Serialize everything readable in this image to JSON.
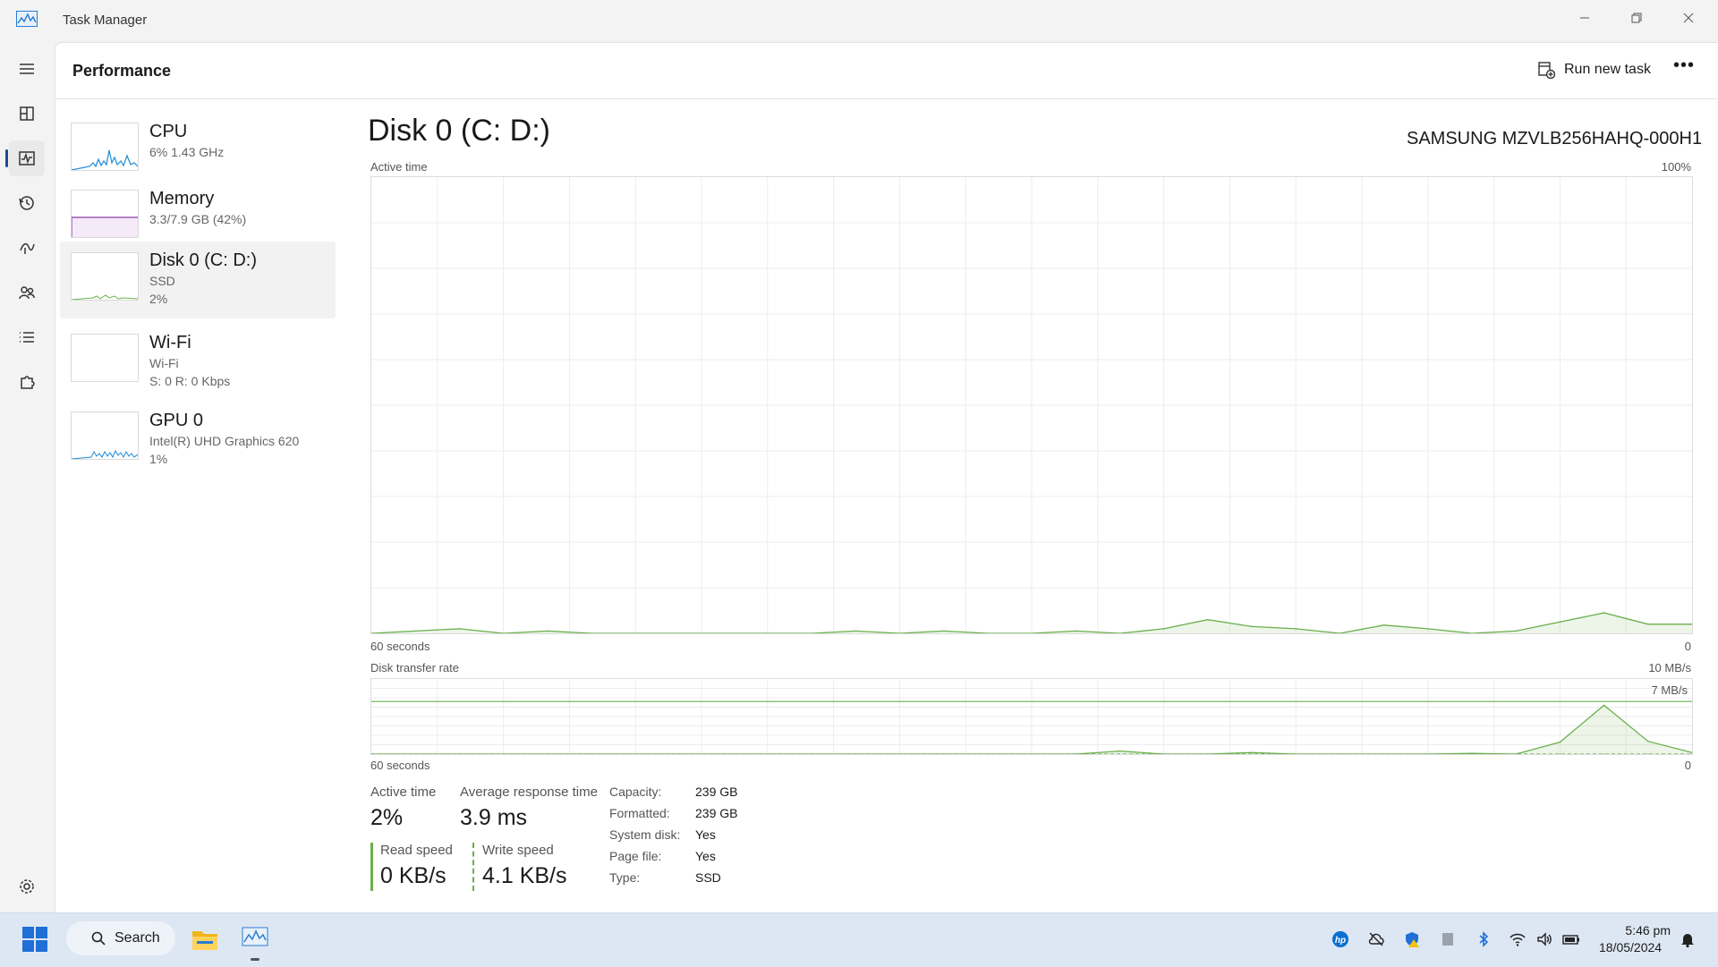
{
  "window": {
    "title": "Task Manager"
  },
  "header": {
    "title": "Performance",
    "run_task_label": "Run new task"
  },
  "devices": [
    {
      "name": "CPU",
      "sub1": "6%  1.43 GHz",
      "sub2": ""
    },
    {
      "name": "Memory",
      "sub1": "3.3/7.9 GB (42%)",
      "sub2": ""
    },
    {
      "name": "Disk 0 (C: D:)",
      "sub1": "SSD",
      "sub2": "2%"
    },
    {
      "name": "Wi-Fi",
      "sub1": "Wi-Fi",
      "sub2": "S: 0  R: 0 Kbps"
    },
    {
      "name": "GPU 0",
      "sub1": "Intel(R) UHD Graphics 620",
      "sub2": "1%"
    }
  ],
  "detail": {
    "title": "Disk 0 (C: D:)",
    "model": "SAMSUNG MZVLB256HAHQ-000H1",
    "active_chart": {
      "label": "Active time",
      "max_label": "100%",
      "left_label": "60 seconds",
      "right_label": "0"
    },
    "transfer_chart": {
      "label": "Disk transfer rate",
      "max_label": "10 MB/s",
      "ref_label": "7 MB/s",
      "left_label": "60 seconds",
      "right_label": "0"
    }
  },
  "stats": {
    "active_time_label": "Active time",
    "active_time_value": "2%",
    "avg_response_label": "Average response time",
    "avg_response_value": "3.9 ms",
    "read_label": "Read speed",
    "read_value": "0 KB/s",
    "write_label": "Write speed",
    "write_value": "4.1 KB/s"
  },
  "properties": [
    {
      "key": "Capacity:",
      "value": "239 GB"
    },
    {
      "key": "Formatted:",
      "value": "239 GB"
    },
    {
      "key": "System disk:",
      "value": "Yes"
    },
    {
      "key": "Page file:",
      "value": "Yes"
    },
    {
      "key": "Type:",
      "value": "SSD"
    }
  ],
  "taskbar": {
    "search_label": "Search",
    "time": "5:46 pm",
    "date": "18/05/2024"
  },
  "colors": {
    "disk_green": "#6ab04c",
    "cpu_blue": "#1f8bd6",
    "memory_purple": "#8b3aa8",
    "gpu_blue": "#1f8bd6"
  },
  "chart_data": [
    {
      "type": "area",
      "title": "Active time",
      "ylabel": "",
      "ylim": [
        0,
        100
      ],
      "x": [
        60,
        58,
        56,
        54,
        52,
        50,
        48,
        46,
        44,
        42,
        40,
        38,
        36,
        34,
        32,
        30,
        28,
        26,
        24,
        22,
        20,
        18,
        16,
        14,
        12,
        10,
        8,
        6,
        4,
        2,
        0
      ],
      "series": [
        {
          "values": [
            0,
            0.5,
            1,
            0,
            0.5,
            0,
            0,
            0,
            0,
            0,
            0,
            0.5,
            0,
            0.5,
            0,
            0,
            0.5,
            0,
            1,
            3,
            1.5,
            1,
            0,
            1.8,
            1,
            0,
            0.5,
            2.5,
            4.5,
            2,
            2
          ]
        }
      ]
    },
    {
      "type": "area",
      "title": "Disk transfer rate",
      "ylabel": "",
      "ylim": [
        0,
        10
      ],
      "x": [
        60,
        58,
        56,
        54,
        52,
        50,
        48,
        46,
        44,
        42,
        40,
        38,
        36,
        34,
        32,
        30,
        28,
        26,
        24,
        22,
        20,
        18,
        16,
        14,
        12,
        10,
        8,
        6,
        4,
        2,
        0
      ],
      "series": [
        {
          "values": [
            0,
            0,
            0,
            0,
            0,
            0,
            0,
            0,
            0,
            0,
            0,
            0,
            0,
            0,
            0,
            0,
            0,
            0.4,
            0,
            0,
            0.2,
            0,
            0,
            0,
            0,
            0.1,
            0,
            1.6,
            6.5,
            1.7,
            0.2
          ]
        },
        {
          "values": [
            0,
            0,
            0,
            0,
            0,
            0,
            0,
            0,
            0,
            0,
            0,
            0,
            0,
            0,
            0,
            0,
            0,
            0,
            0,
            0,
            0,
            0,
            0,
            0,
            0,
            0,
            0,
            0,
            0,
            0,
            0
          ]
        }
      ]
    }
  ]
}
